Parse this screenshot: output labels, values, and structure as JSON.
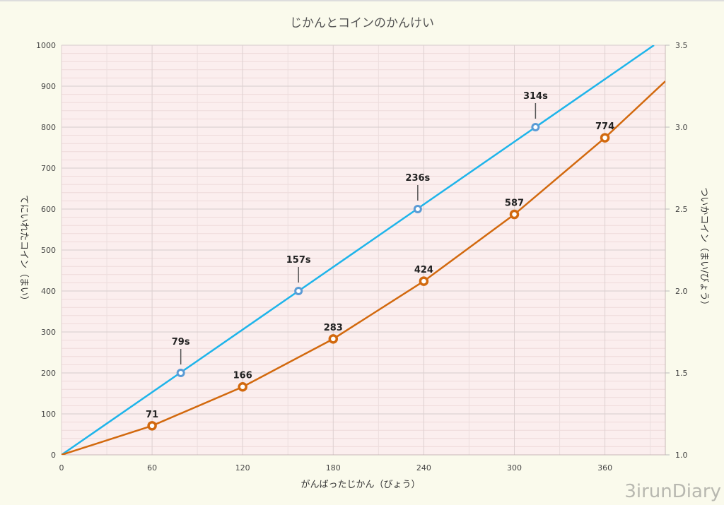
{
  "chart_data": {
    "type": "line",
    "title": "じかんとコインのかんけい",
    "xlabel": "がんばったじかん（びょう）",
    "ylabel": "てにいれたコイン（まい）",
    "y2label": "ついかコイン（まい/びょう）",
    "xlim": [
      0,
      400
    ],
    "ylim": [
      0,
      1000
    ],
    "y2lim": [
      1.0,
      3.5
    ],
    "x_ticks": [
      "0",
      "60",
      "120",
      "180",
      "240",
      "300",
      "360"
    ],
    "y_ticks": [
      "0",
      "100",
      "200",
      "300",
      "400",
      "500",
      "600",
      "700",
      "800",
      "900",
      "1000"
    ],
    "y2_ticks": [
      "1.0",
      "1.5",
      "2.0",
      "2.5",
      "3.0",
      "3.5"
    ],
    "grid": true,
    "series": [
      {
        "name": "blue",
        "color": "#1eb4ea",
        "marker_color": "#5b9bd5",
        "line": [
          [
            0,
            0
          ],
          [
            392.5,
            1000
          ]
        ],
        "points": [
          [
            79,
            200
          ],
          [
            157,
            400
          ],
          [
            236,
            600
          ],
          [
            314,
            800
          ]
        ],
        "labels": [
          "79s",
          "157s",
          "236s",
          "314s"
        ]
      },
      {
        "name": "orange",
        "color": "#d2690e",
        "marker_color": "#d2690e",
        "line": [
          [
            0,
            0
          ],
          [
            60,
            71
          ],
          [
            120,
            166
          ],
          [
            180,
            283
          ],
          [
            240,
            424
          ],
          [
            300,
            587
          ],
          [
            360,
            774
          ],
          [
            400,
            912
          ]
        ],
        "points": [
          [
            60,
            71
          ],
          [
            120,
            166
          ],
          [
            180,
            283
          ],
          [
            240,
            424
          ],
          [
            300,
            587
          ],
          [
            360,
            774
          ]
        ],
        "labels": [
          "71",
          "166",
          "283",
          "424",
          "587",
          "774"
        ]
      }
    ]
  },
  "watermark": "3irunDiary"
}
